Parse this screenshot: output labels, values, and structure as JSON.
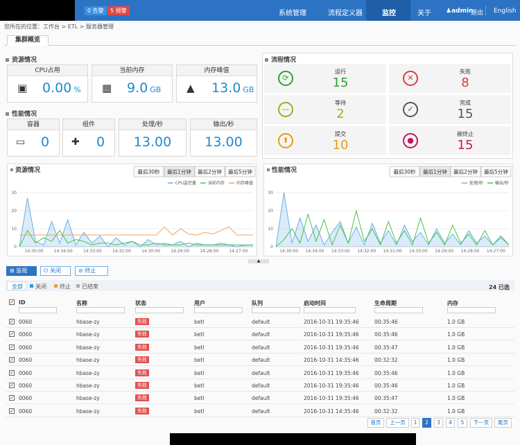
{
  "nav": {
    "badges": [
      "0 告警",
      "5 预警"
    ],
    "items": [
      "系统管理",
      "流程定义器",
      "监控",
      "关于"
    ],
    "active": 2,
    "user": "admin",
    "logout": "退出",
    "lang": "English"
  },
  "breadcrumb": "您所在的位置：工作台 > ETL > 服务器管理",
  "tab": "集群概览",
  "resource": {
    "title": "资源情况",
    "cards": [
      {
        "label": "CPU占用",
        "value": "0.00",
        "unit": "%"
      },
      {
        "label": "当前内存",
        "value": "9.0",
        "unit": "GB"
      },
      {
        "label": "内存峰值",
        "value": "13.0",
        "unit": "GB"
      }
    ]
  },
  "performance": {
    "title": "性能情况",
    "cards": [
      {
        "label": "容器",
        "value": "0"
      },
      {
        "label": "组件",
        "value": "0"
      },
      {
        "label": "处理/秒",
        "value": "13.00"
      },
      {
        "label": "输出/秒",
        "value": "13.00"
      }
    ]
  },
  "flow": {
    "title": "流程情况",
    "items": [
      {
        "label": "运行",
        "value": "15",
        "color": "#2aa22a"
      },
      {
        "label": "失败",
        "value": "8",
        "color": "#e03a3a"
      },
      {
        "label": "等待",
        "value": "2",
        "color": "#8cb51e"
      },
      {
        "label": "完成",
        "value": "15",
        "color": "#555555"
      },
      {
        "label": "提交",
        "value": "10",
        "color": "#e89a12"
      },
      {
        "label": "被终止",
        "value": "15",
        "color": "#c0165f"
      }
    ]
  },
  "charts": [
    {
      "type": "line",
      "title": "资源情况",
      "buttons": [
        "最后30秒",
        "最后1分钟",
        "最后2分钟",
        "最后5分钟"
      ],
      "active": 1,
      "ylim": [
        0,
        33
      ],
      "yticks": [
        0,
        10,
        20,
        30
      ],
      "x_labels": [
        "14:30:00",
        "14:34:00",
        "14:33:00",
        "14:32:00",
        "14:30:00",
        "14:29:00",
        "14:28:00",
        "14:27:00"
      ],
      "series": [
        {
          "name": "CPU监控量",
          "color": "#6aaee8",
          "values": [
            0,
            27,
            3,
            1,
            14,
            2,
            15,
            1,
            8,
            2,
            6,
            0,
            5,
            1,
            3,
            0,
            4,
            1,
            2,
            1,
            3,
            0,
            2,
            1,
            1,
            2,
            1,
            0,
            1,
            1
          ]
        },
        {
          "name": "当前内存",
          "color": "#46c446",
          "values": [
            0,
            9,
            2,
            5,
            3,
            9,
            2,
            4,
            3,
            1,
            2,
            2,
            1,
            2,
            3,
            1,
            1,
            2,
            1,
            1,
            1,
            2,
            1,
            1,
            1,
            1,
            1,
            1,
            1,
            1
          ]
        },
        {
          "name": "内存峰值",
          "color": "#f0a060",
          "values": [
            6.5,
            6.5,
            6.5,
            6.5,
            6.5,
            6.5,
            6.5,
            6.5,
            6.5,
            6.5,
            6.5,
            6.5,
            6.5,
            6.5,
            6.5,
            6.5,
            6.5,
            6.5,
            11,
            6.5,
            10,
            7,
            6.5,
            8,
            7,
            9,
            11,
            6.5,
            6.5,
            6.5
          ]
        }
      ]
    },
    {
      "type": "line",
      "title": "性能情况",
      "buttons": [
        "最后30秒",
        "最后1分钟",
        "最后2分钟",
        "最后5分钟"
      ],
      "active": 1,
      "ylim": [
        0,
        33
      ],
      "yticks": [
        0,
        10,
        20,
        30
      ],
      "x_labels": [
        "14:30:00",
        "14:34:00",
        "14:33:00",
        "14:32:00",
        "14:31:00",
        "14:30:00",
        "14:29:00",
        "14:28:00",
        "14:27:00"
      ],
      "series": [
        {
          "name": "处理/秒",
          "color": "#6aaee8",
          "values": [
            0,
            30,
            2,
            16,
            3,
            12,
            1,
            8,
            14,
            2,
            11,
            1,
            13,
            2,
            9,
            1,
            12,
            3,
            8,
            1,
            10,
            2,
            7,
            1,
            9,
            2,
            6,
            1,
            5,
            1
          ]
        },
        {
          "name": "输出/秒",
          "color": "#46c446",
          "values": [
            0,
            4,
            10,
            2,
            18,
            3,
            15,
            1,
            12,
            2,
            20,
            3,
            10,
            1,
            14,
            2,
            9,
            1,
            16,
            2,
            8,
            1,
            12,
            2,
            7,
            1,
            9,
            1,
            6,
            1
          ]
        }
      ]
    }
  ],
  "toolbar": [
    "监视",
    "关闭",
    "终止"
  ],
  "filters": [
    "全部",
    "关闭",
    "终止",
    "已结束"
  ],
  "selected": "24 已选",
  "table": {
    "columns": [
      "ID",
      "名称",
      "状态",
      "用户",
      "队列",
      "启动时间",
      "生命周期",
      "内存"
    ],
    "rows": [
      [
        "0060",
        "hbase-zy",
        "失败",
        "betl",
        "default",
        "2016-10-31 19:35:46",
        "00:35:46",
        "1.0 GB"
      ],
      [
        "0060",
        "hbase-zy",
        "失败",
        "betl",
        "default",
        "2016-10-31 19:35:46",
        "00:35:46",
        "1.0 GB"
      ],
      [
        "0060",
        "hbase-zy",
        "失败",
        "betl",
        "default",
        "2016-10-31 19:35:46",
        "00:35:47",
        "1.0 GB"
      ],
      [
        "0060",
        "hbase-zy",
        "失败",
        "betl",
        "default",
        "2016-10-31 14:35:46",
        "00:32:32",
        "1.0 GB"
      ],
      [
        "0060",
        "hbase-zy",
        "失败",
        "betl",
        "default",
        "2016-10-31 19:35:46",
        "00:35:46",
        "1.0 GB"
      ],
      [
        "0060",
        "hbase-zy",
        "失败",
        "betl",
        "default",
        "2016-10-31 19:35:46",
        "00:35:46",
        "1.0 GB"
      ],
      [
        "0060",
        "hbase-zy",
        "失败",
        "betl",
        "default",
        "2016-10-31 19:35:46",
        "00:35:47",
        "1.0 GB"
      ],
      [
        "0060",
        "hbase-zy",
        "失败",
        "betl",
        "default",
        "2016-10-31 14:35:46",
        "00:32:32",
        "1.0 GB"
      ]
    ]
  },
  "pagination": {
    "pages": [
      "首页",
      "上一页",
      "1",
      "2",
      "3",
      "4",
      "5",
      "下一页",
      "尾页"
    ],
    "active": 3
  }
}
